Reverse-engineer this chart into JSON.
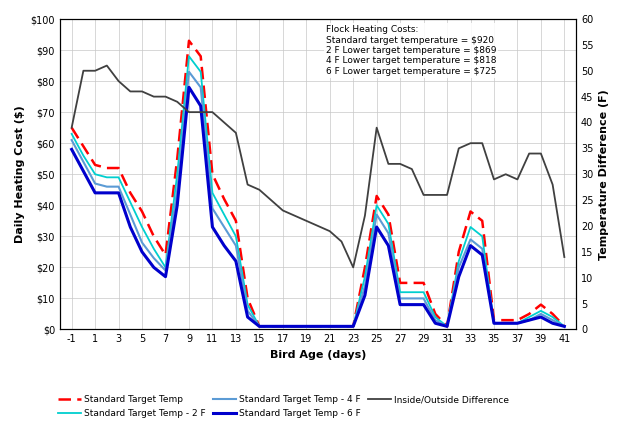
{
  "bird_age": [
    -1,
    0,
    1,
    2,
    3,
    4,
    5,
    6,
    7,
    8,
    9,
    10,
    11,
    12,
    13,
    14,
    15,
    16,
    17,
    18,
    19,
    20,
    21,
    22,
    23,
    24,
    25,
    26,
    27,
    28,
    29,
    30,
    31,
    32,
    33,
    34,
    35,
    36,
    37,
    38,
    39,
    40,
    41
  ],
  "standard_target": [
    65,
    59,
    53,
    52,
    52,
    44,
    38,
    30,
    24,
    55,
    93,
    88,
    50,
    42,
    35,
    10,
    1,
    1,
    1,
    1,
    1,
    1,
    1,
    1,
    1,
    20,
    43,
    37,
    15,
    15,
    15,
    5,
    1,
    25,
    38,
    35,
    3,
    3,
    3,
    5,
    8,
    5,
    1
  ],
  "target_2f": [
    63,
    56,
    50,
    49,
    49,
    41,
    33,
    26,
    20,
    50,
    88,
    83,
    44,
    37,
    30,
    8,
    1,
    1,
    1,
    1,
    1,
    1,
    1,
    1,
    1,
    17,
    40,
    34,
    12,
    12,
    12,
    4,
    1,
    22,
    33,
    30,
    2,
    2,
    2,
    4,
    6,
    4,
    1
  ],
  "target_4f": [
    61,
    54,
    47,
    46,
    46,
    37,
    28,
    23,
    19,
    45,
    83,
    78,
    39,
    33,
    27,
    6,
    1,
    1,
    1,
    1,
    1,
    1,
    1,
    1,
    1,
    14,
    37,
    31,
    10,
    10,
    10,
    3,
    1,
    20,
    29,
    26,
    2,
    2,
    2,
    3,
    5,
    3,
    1
  ],
  "target_6f": [
    58,
    51,
    44,
    44,
    44,
    33,
    25,
    20,
    17,
    40,
    78,
    72,
    33,
    27,
    22,
    4,
    1,
    1,
    1,
    1,
    1,
    1,
    1,
    1,
    1,
    11,
    33,
    27,
    8,
    8,
    8,
    2,
    1,
    17,
    27,
    24,
    2,
    2,
    2,
    3,
    4,
    2,
    1
  ],
  "io_vals": [
    39,
    50,
    50,
    51,
    48,
    46,
    46,
    45,
    45,
    44,
    42,
    42,
    42,
    40,
    38,
    28,
    27,
    25,
    23,
    22,
    21,
    20,
    19,
    17,
    12,
    22,
    39,
    32,
    32,
    31,
    26,
    26,
    26,
    35,
    36,
    36,
    29,
    30,
    29,
    34,
    34,
    28,
    14
  ],
  "xlabel": "Bird Age (days)",
  "ylabel_left": "Daily Heating Cost ($)",
  "ylabel_right": "Temperature Difference (F)",
  "ylim_left": [
    0,
    100
  ],
  "ylim_right": [
    0,
    60
  ],
  "xticks": [
    -1,
    1,
    3,
    5,
    7,
    9,
    11,
    13,
    15,
    17,
    19,
    21,
    23,
    25,
    27,
    29,
    31,
    33,
    35,
    37,
    39,
    41
  ],
  "yticks_left": [
    0,
    10,
    20,
    30,
    40,
    50,
    60,
    70,
    80,
    90,
    100
  ],
  "yticks_right": [
    0,
    5,
    10,
    15,
    20,
    25,
    30,
    35,
    40,
    45,
    50,
    55,
    60
  ],
  "annotation": "Flock Heating Costs:\nStandard target temperature = $920\n2 F Lower target temperature = $869\n4 F Lower target temperature = $818\n6 F Lower target temperature = $725",
  "legend_standard": "Standard Target Temp",
  "legend_2f": "Standard Target Temp - 2 F",
  "legend_4f": "Standard Target Temp - 4 F",
  "legend_6f": "Standard Target Temp - 6 F",
  "legend_io": "Inside/Outside Difference",
  "color_standard": "#FF0000",
  "color_2f": "#00CFCF",
  "color_4f": "#5B9BD5",
  "color_6f": "#0000CC",
  "color_io": "#404040",
  "bg_color": "#FFFFFF",
  "grid_color": "#C8C8C8"
}
